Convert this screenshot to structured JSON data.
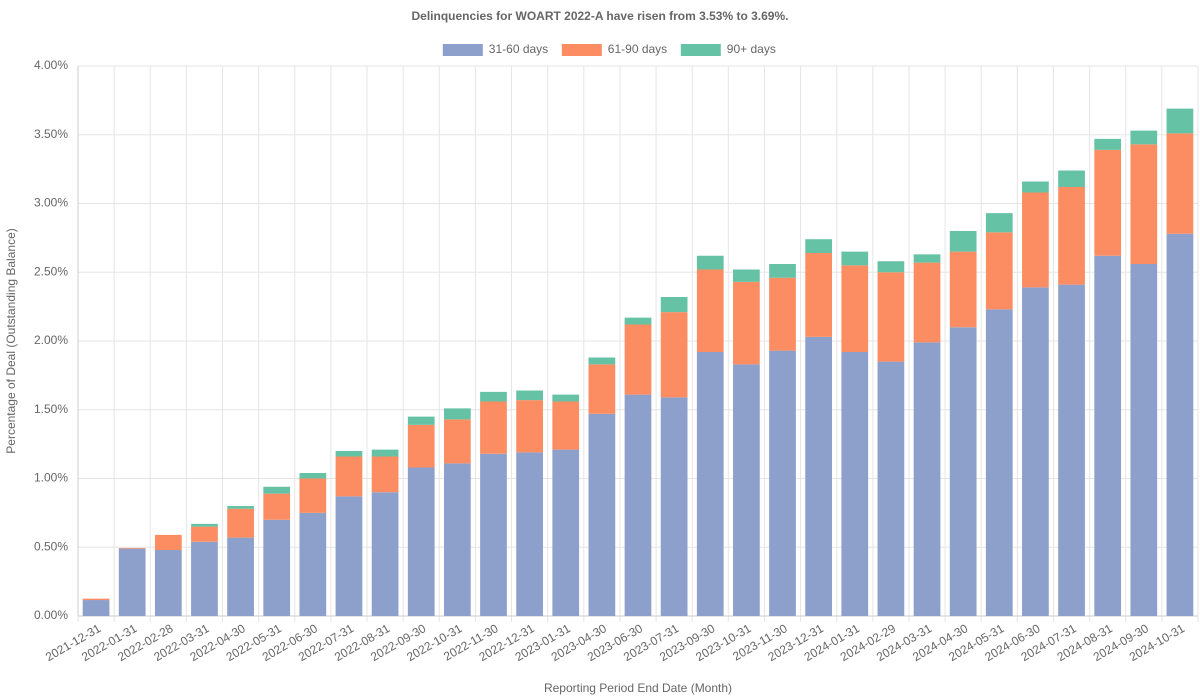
{
  "chart_data": {
    "type": "bar",
    "stacked": true,
    "title": "Delinquencies for WOART 2022-A have risen from 3.53% to 3.69%.",
    "xlabel": "Reporting Period End Date (Month)",
    "ylabel": "Percentage of Deal (Outstanding Balance)",
    "categories": [
      "2021-12-31",
      "2022-01-31",
      "2022-02-28",
      "2022-03-31",
      "2022-04-30",
      "2022-05-31",
      "2022-06-30",
      "2022-07-31",
      "2022-08-31",
      "2022-09-30",
      "2022-10-31",
      "2022-11-30",
      "2022-12-31",
      "2023-01-31",
      "2023-04-30",
      "2023-06-30",
      "2023-07-31",
      "2023-09-30",
      "2023-10-31",
      "2023-11-30",
      "2023-12-31",
      "2024-01-31",
      "2024-02-29",
      "2024-03-31",
      "2024-04-30",
      "2024-05-31",
      "2024-06-30",
      "2024-07-31",
      "2024-08-31",
      "2024-09-30",
      "2024-10-31"
    ],
    "series": [
      {
        "name": "31-60 days",
        "color": "#8da0cb",
        "values": [
          0.116,
          0.49,
          0.48,
          0.54,
          0.57,
          0.7,
          0.75,
          0.87,
          0.9,
          1.08,
          1.11,
          1.18,
          1.19,
          1.21,
          1.47,
          1.61,
          1.59,
          1.92,
          1.83,
          1.93,
          2.03,
          1.92,
          1.85,
          1.99,
          2.1,
          2.23,
          2.39,
          2.41,
          2.62,
          2.56,
          2.78
        ]
      },
      {
        "name": "61-90 days",
        "color": "#fc8d62",
        "values": [
          0.01,
          0.005,
          0.11,
          0.11,
          0.21,
          0.19,
          0.25,
          0.29,
          0.26,
          0.31,
          0.32,
          0.38,
          0.38,
          0.35,
          0.36,
          0.51,
          0.62,
          0.6,
          0.6,
          0.53,
          0.61,
          0.63,
          0.65,
          0.58,
          0.55,
          0.56,
          0.69,
          0.71,
          0.77,
          0.87,
          0.73
        ]
      },
      {
        "name": "90+ days",
        "color": "#66c2a5",
        "values": [
          0,
          0,
          0,
          0.02,
          0.02,
          0.05,
          0.04,
          0.04,
          0.05,
          0.06,
          0.08,
          0.07,
          0.07,
          0.05,
          0.05,
          0.05,
          0.11,
          0.1,
          0.09,
          0.1,
          0.1,
          0.1,
          0.08,
          0.06,
          0.15,
          0.14,
          0.08,
          0.12,
          0.08,
          0.1,
          0.18
        ]
      }
    ],
    "ylim": [
      0,
      4
    ],
    "yticks": [
      {
        "value": 0,
        "label": "0.00%"
      },
      {
        "value": 0.5,
        "label": "0.50%"
      },
      {
        "value": 1,
        "label": "1.00%"
      },
      {
        "value": 1.5,
        "label": "1.50%"
      },
      {
        "value": 2,
        "label": "2.00%"
      },
      {
        "value": 2.5,
        "label": "2.50%"
      },
      {
        "value": 3,
        "label": "3.00%"
      },
      {
        "value": 3.5,
        "label": "3.50%"
      },
      {
        "value": 4,
        "label": "4.00%"
      }
    ],
    "grid": true,
    "legend": "top"
  }
}
